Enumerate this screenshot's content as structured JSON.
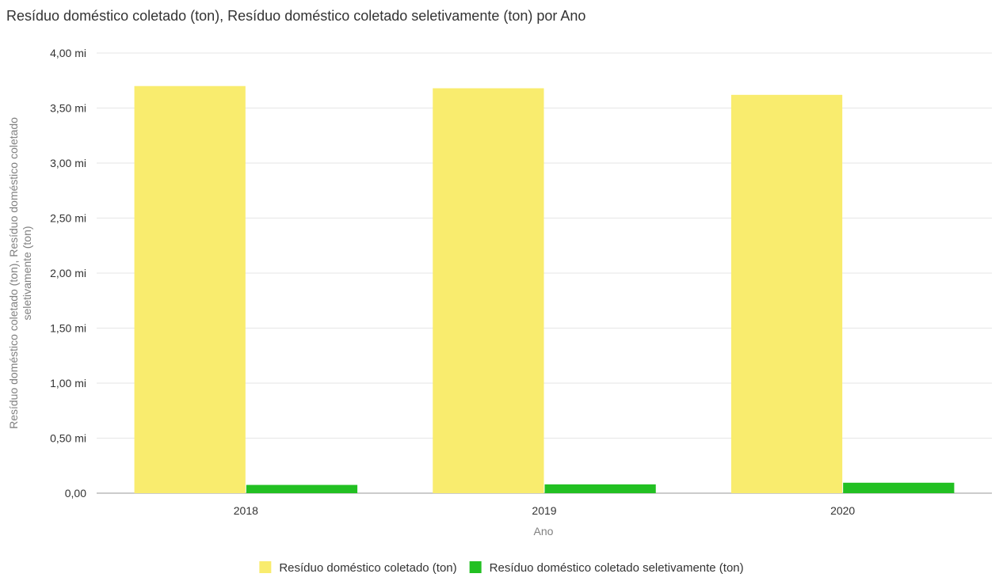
{
  "chart_data": {
    "type": "bar",
    "title": "Resíduo doméstico coletado (ton), Resíduo doméstico coletado seletivamente (ton) por Ano",
    "xlabel": "Ano",
    "ylabel_lines": [
      "Resíduo doméstico coletado (ton), Resíduo doméstico coletado",
      "seletivamente (ton)"
    ],
    "categories": [
      "2018",
      "2019",
      "2020"
    ],
    "series": [
      {
        "name": "Resíduo doméstico coletado (ton)",
        "color": "#f9ec6e",
        "values": [
          3700000,
          3680000,
          3620000
        ]
      },
      {
        "name": "Resíduo doméstico coletado seletivamente (ton)",
        "color": "#22c022",
        "values": [
          75000,
          80000,
          95000
        ]
      }
    ],
    "ylim": [
      0,
      4000000
    ],
    "yticks": [
      0,
      500000,
      1000000,
      1500000,
      2000000,
      2500000,
      3000000,
      3500000,
      4000000
    ],
    "ytick_labels": [
      "0,00",
      "0,50 mi",
      "1,00 mi",
      "1,50 mi",
      "2,00 mi",
      "2,50 mi",
      "3,00 mi",
      "3,50 mi",
      "4,00 mi"
    ],
    "grid": true,
    "legend_position": "bottom-center"
  }
}
